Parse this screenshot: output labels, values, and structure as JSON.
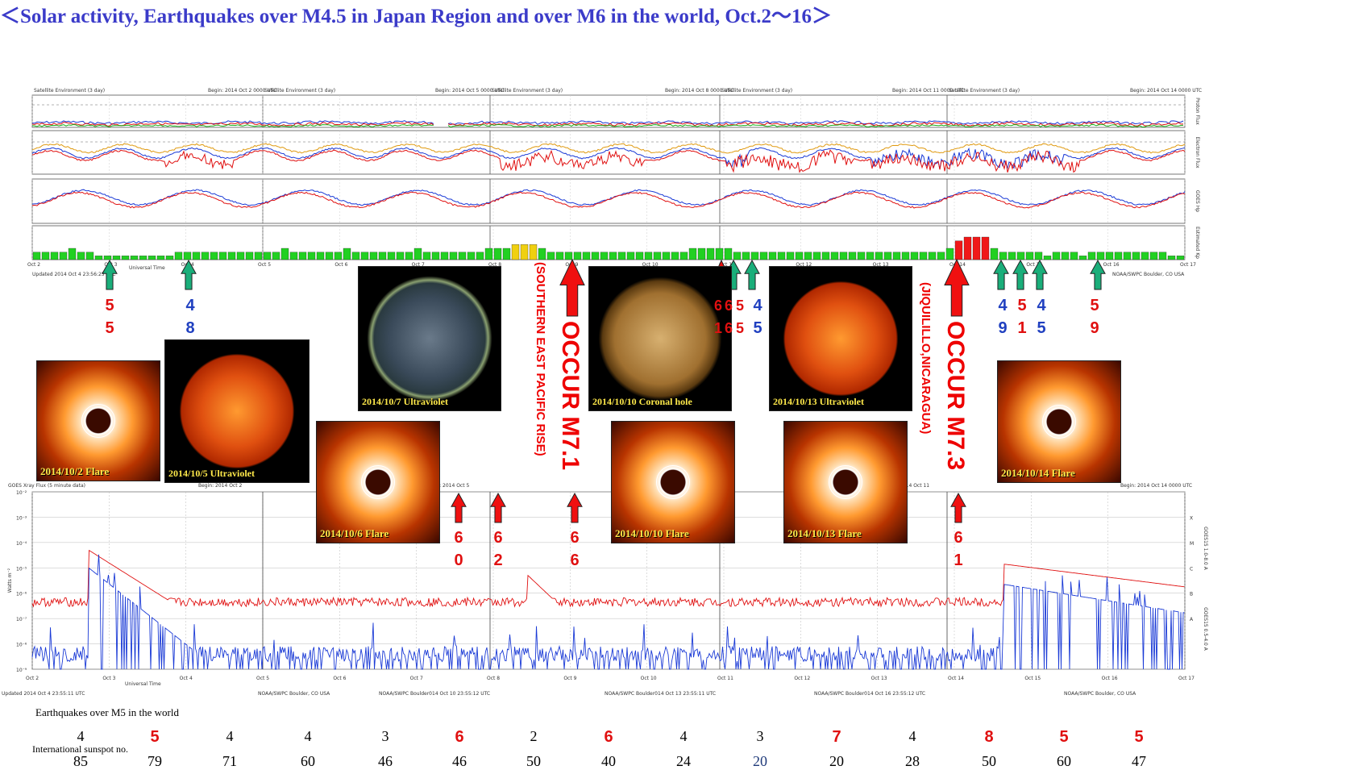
{
  "title": "＜Solar activity, Earthquakes over M4.5 in Japan Region and over M6 in the world, Oct.2～16＞",
  "top_panel": {
    "header_left": "Satellite Environment (3 day)",
    "begins": [
      "Begin:  2014 Oct 2 0000 UTC",
      "Begin:  2014 Oct 5 0000 UTC",
      "Begin:  2014 Oct 8 0000 UTC",
      "Begin:  2014 Oct 11 0000 UTC",
      "Begin:  2014 Oct 14 0000 UTC"
    ],
    "right_labels": [
      "Proton Flux",
      "Electron Flux",
      "GOES Hp",
      "Estimated Kp"
    ],
    "kp_dates": [
      "Oct 2",
      "Oct 3",
      "Oct 4",
      "Oct 5",
      "Oct 6",
      "Oct 7",
      "Oct 8",
      "Oct 9",
      "Oct 10",
      "Oct 11",
      "Oct 12",
      "Oct 13",
      "Oct 14",
      "Oct 15",
      "Oct 16",
      "Oct 17"
    ],
    "universal_time": "Universal Time",
    "updated": [
      "Updated 2014 Oct  4 23:56:25 UTC",
      "NOAA/SWPC Boulder, CO USA"
    ]
  },
  "xray_panel": {
    "header": "GOES Xray Flux (5 minute data)",
    "begins": [
      "Begin:  2014 Oct 2",
      "Begin:  2014 Oct 5",
      "Begin:  2014 Oct 8",
      "Begin:  2014 Oct 11",
      "Begin:  2014 Oct 14 0000 UTC"
    ],
    "ylabel": "Watts m⁻²",
    "yticks": [
      "10⁻²",
      "10⁻³",
      "10⁻⁴",
      "10⁻⁵",
      "10⁻⁶",
      "10⁻⁷",
      "10⁻⁸",
      "10⁻⁹"
    ],
    "class_labels": [
      "X",
      "M",
      "C",
      "B",
      "A"
    ],
    "right_labels": [
      "GOES15 1.0-8.0 A",
      "GOES15 0.5-4.0 A"
    ],
    "x_dates": [
      "Oct 2",
      "Oct 3",
      "Oct 4",
      "Oct 5",
      "Oct 6",
      "Oct 7",
      "Oct 8",
      "Oct 9",
      "Oct 10",
      "Oct 11",
      "Oct 12",
      "Oct 13",
      "Oct 14",
      "Oct 15",
      "Oct 16",
      "Oct 17"
    ],
    "universal_time": "Universal Time",
    "footer": [
      "Updated 2014 Oct  4 23:55:11 UTC",
      "NOAA/SWPC Boulder, CO USA",
      "NOAA/SWPC Boulder014 Oct 10 23:55:12 UTC",
      "NOAA/SWPC Boulder014 Oct 13 23:55:11 UTC",
      "NOAA/SWPC Boulder014 Oct 16 23:55:12 UTC",
      "NOAA/SWPC Boulder, CO USA"
    ]
  },
  "images": [
    {
      "label": "2014/10/2 Flare",
      "kind": "flare"
    },
    {
      "label": "2014/10/5 Ultraviolet",
      "kind": "uv"
    },
    {
      "label": "2014/10/6 Flare",
      "kind": "flare"
    },
    {
      "label": "2014/10/7 Ultraviolet",
      "kind": "uvgreen"
    },
    {
      "label": "2014/10/10 Coronal hole",
      "kind": "coronal"
    },
    {
      "label": "2014/10/10 Flare",
      "kind": "flare"
    },
    {
      "label": "2014/10/13 Ultraviolet",
      "kind": "uv"
    },
    {
      "label": "2014/10/13 Flare",
      "kind": "flare"
    },
    {
      "label": "2014/10/14 Flare",
      "kind": "flare"
    }
  ],
  "japan_quakes": [
    {
      "top": "5",
      "bottom": "5",
      "color": "#e01010"
    },
    {
      "top": "4",
      "bottom": "8",
      "color": "#2040c0"
    },
    {
      "top": "6",
      "bottom": "1",
      "color": "#e01010"
    },
    {
      "top": "6",
      "bottom": "6",
      "color": "#e01010"
    },
    {
      "top": "5",
      "bottom": "5",
      "color": "#e01010"
    },
    {
      "top": "4",
      "bottom": "5",
      "color": "#2040c0"
    },
    {
      "top": "4",
      "bottom": "9",
      "color": "#2040c0"
    },
    {
      "top": "5",
      "bottom": "1",
      "color": "#e01010"
    },
    {
      "top": "4",
      "bottom": "5",
      "color": "#2040c0"
    },
    {
      "top": "5",
      "bottom": "9",
      "color": "#e01010"
    }
  ],
  "world_quakes": [
    {
      "top": "6",
      "bottom": "0"
    },
    {
      "top": "6",
      "bottom": "2"
    },
    {
      "top": "6",
      "bottom": "6"
    },
    {
      "top": "6",
      "bottom": "1"
    }
  ],
  "occur": [
    {
      "text": "OCCUR M7.1",
      "place": "(SOUTHERN EAST PACIFIC RISE)"
    },
    {
      "text": "OCCUR M7.3",
      "place": "(JIQUILILLO,NICARAGUA)"
    }
  ],
  "bottom": {
    "eq_label": "Earthquakes over M5 in the world",
    "sunspot_label": "International sunspot no.",
    "eq_counts": [
      {
        "v": "4",
        "c": "#000"
      },
      {
        "v": "5",
        "c": "#e01010"
      },
      {
        "v": "4",
        "c": "#000"
      },
      {
        "v": "4",
        "c": "#000"
      },
      {
        "v": "3",
        "c": "#000"
      },
      {
        "v": "6",
        "c": "#e01010"
      },
      {
        "v": "2",
        "c": "#000"
      },
      {
        "v": "6",
        "c": "#e01010"
      },
      {
        "v": "4",
        "c": "#000"
      },
      {
        "v": "3",
        "c": "#000"
      },
      {
        "v": "7",
        "c": "#e01010"
      },
      {
        "v": "4",
        "c": "#000"
      },
      {
        "v": "8",
        "c": "#e01010"
      },
      {
        "v": "5",
        "c": "#e01010"
      },
      {
        "v": "5",
        "c": "#e01010"
      }
    ],
    "sunspots": [
      {
        "v": "85",
        "c": "#000"
      },
      {
        "v": "79",
        "c": "#000"
      },
      {
        "v": "71",
        "c": "#000"
      },
      {
        "v": "60",
        "c": "#000"
      },
      {
        "v": "46",
        "c": "#000"
      },
      {
        "v": "46",
        "c": "#000"
      },
      {
        "v": "50",
        "c": "#000"
      },
      {
        "v": "40",
        "c": "#000"
      },
      {
        "v": "24",
        "c": "#000"
      },
      {
        "v": "20",
        "c": "#1f3a7a"
      },
      {
        "v": "20",
        "c": "#000"
      },
      {
        "v": "28",
        "c": "#000"
      },
      {
        "v": "50",
        "c": "#000"
      },
      {
        "v": "60",
        "c": "#000"
      },
      {
        "v": "47",
        "c": "#000"
      }
    ]
  },
  "chart_data": {
    "type": "bar",
    "title": "＜Solar activity, Earthquakes over M4.5 in Japan Region and over M6 in the world, Oct.2～16＞",
    "categories": [
      "Oct 2",
      "Oct 3",
      "Oct 4",
      "Oct 5",
      "Oct 6",
      "Oct 7",
      "Oct 8",
      "Oct 9",
      "Oct 10",
      "Oct 11",
      "Oct 12",
      "Oct 13",
      "Oct 14",
      "Oct 15",
      "Oct 16"
    ],
    "series": [
      {
        "name": "Earthquakes over M5 in the world",
        "values": [
          4,
          5,
          4,
          4,
          3,
          6,
          2,
          6,
          4,
          3,
          7,
          4,
          8,
          5,
          5
        ]
      },
      {
        "name": "International sunspot no.",
        "values": [
          85,
          79,
          71,
          60,
          46,
          46,
          50,
          40,
          24,
          20,
          20,
          28,
          50,
          60,
          47
        ]
      }
    ],
    "kp_estimated": {
      "ylim": [
        0,
        9
      ],
      "values": [
        2,
        2,
        2,
        2,
        3,
        2,
        2,
        1,
        1,
        1,
        1,
        1,
        1,
        1,
        1,
        1,
        2,
        2,
        2,
        2,
        2,
        2,
        2,
        2,
        2,
        2,
        2,
        2,
        3,
        2,
        2,
        2,
        2,
        2,
        2,
        3,
        2,
        2,
        2,
        2,
        2,
        2,
        2,
        3,
        2,
        2,
        2,
        2,
        2,
        2,
        2,
        3,
        3,
        3,
        4,
        4,
        4,
        3,
        2,
        2,
        2,
        2,
        2,
        2,
        2,
        2,
        2,
        2,
        2,
        2,
        2,
        2,
        2,
        2,
        3,
        3,
        3,
        3,
        3,
        2,
        2,
        2,
        2,
        2,
        2,
        2,
        2,
        2,
        2,
        2,
        2,
        2,
        2,
        2,
        2,
        2,
        2,
        2,
        2,
        2,
        2,
        2,
        2,
        3,
        5,
        6,
        6,
        6,
        3,
        2,
        2,
        2,
        2,
        2,
        1,
        2,
        2,
        2,
        1,
        2,
        2,
        2,
        2,
        2,
        2,
        2,
        2,
        2,
        1,
        1
      ],
      "colors_note": "green below 4, yellow at 4-5, red at 5+"
    },
    "xray_flux": {
      "ylim_log10": [
        -9,
        -2
      ],
      "peak_events": [
        {
          "x": "Oct 2.9",
          "class": "M7"
        },
        {
          "x": "Oct 14.8",
          "class": "M2"
        }
      ]
    }
  }
}
